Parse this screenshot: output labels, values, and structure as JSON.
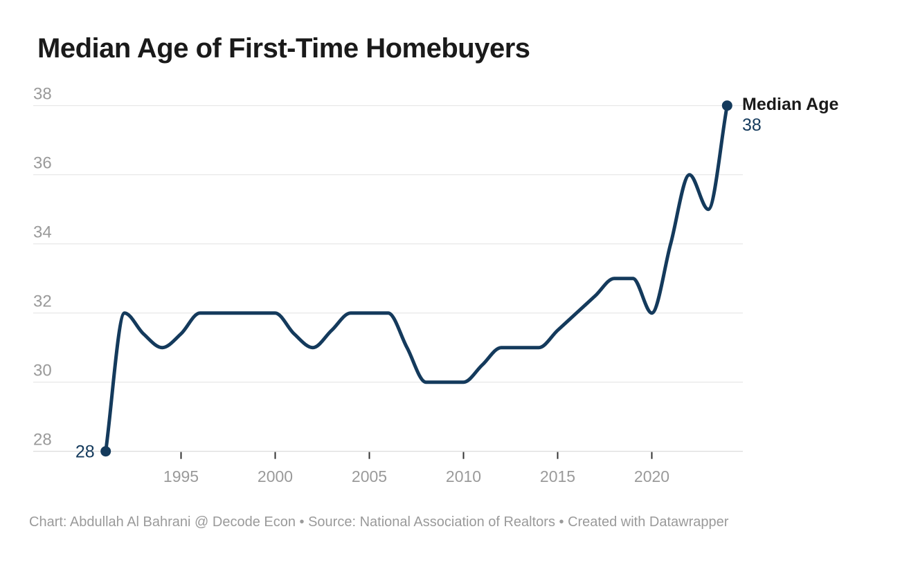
{
  "title": "Median Age of First-Time Homebuyers",
  "footer": {
    "text": "Chart: Abdullah Al Bahrani @ Decode Econ • Source: National Association of Realtors • Created with Datawrapper"
  },
  "chart_data": {
    "type": "line",
    "title": "Median Age of First-Time Homebuyers",
    "xlabel": "",
    "ylabel": "",
    "xlim": [
      1991,
      2024
    ],
    "ylim": [
      28,
      38
    ],
    "grid": "horizontal",
    "x_ticks": [
      1995,
      2000,
      2005,
      2010,
      2015,
      2020
    ],
    "y_ticks": [
      28,
      30,
      32,
      34,
      36,
      38
    ],
    "x": [
      1991,
      1992,
      1993,
      1994,
      1995,
      1996,
      1997,
      1998,
      1999,
      2000,
      2001,
      2002,
      2003,
      2004,
      2005,
      2006,
      2007,
      2008,
      2009,
      2010,
      2011,
      2012,
      2013,
      2014,
      2015,
      2016,
      2017,
      2018,
      2019,
      2020,
      2021,
      2022,
      2023,
      2024
    ],
    "series": [
      {
        "name": "Median Age",
        "values": [
          28,
          32,
          31.4,
          31,
          31.4,
          32,
          32,
          32,
          32,
          32,
          31.4,
          31,
          31.5,
          32,
          32,
          32,
          31,
          30,
          30,
          30,
          30.5,
          31,
          31,
          31,
          31.5,
          32,
          32.5,
          33,
          33,
          32,
          34,
          36,
          35,
          38
        ]
      }
    ],
    "legend_position": "end-of-line",
    "annotations": {
      "start_point_label": "28",
      "end_series_label": "Median Age",
      "end_value_label": "38"
    },
    "colors": {
      "line": "#143a5c",
      "annotation_value": "#143a5c",
      "annotation_series": "#1a1a1a",
      "axis_text": "#9a9a9a",
      "gridline": "#e2e2e2",
      "baseline": "#d2d2d2",
      "tick": "#333333",
      "title_text": "#1a1a1a",
      "footer_text": "#9a9a9a"
    }
  }
}
